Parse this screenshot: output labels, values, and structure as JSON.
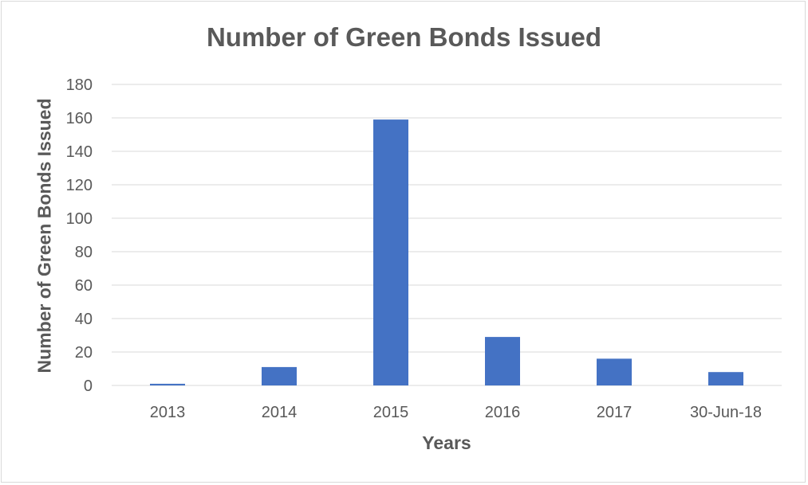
{
  "chart_data": {
    "type": "bar",
    "title": "Number of Green Bonds Issued",
    "xlabel": "Years",
    "ylabel": "Number of Green Bonds Issued",
    "categories": [
      "2013",
      "2014",
      "2015",
      "2016",
      "2017",
      "30-Jun-18"
    ],
    "values": [
      1,
      11,
      159,
      29,
      16,
      8
    ],
    "ylim": [
      0,
      180
    ],
    "yticks": [
      0,
      20,
      40,
      60,
      80,
      100,
      120,
      140,
      160,
      180
    ],
    "grid": true,
    "legend": "none",
    "colors": {
      "bar": "#4472c4",
      "grid": "#d9d9d9",
      "text": "#595959"
    }
  }
}
